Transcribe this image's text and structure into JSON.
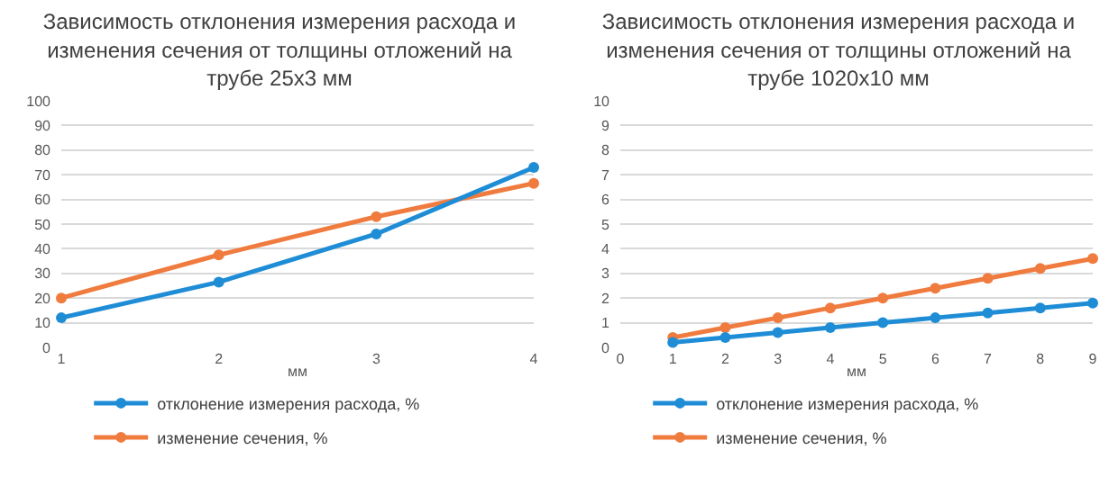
{
  "chart_data": [
    {
      "type": "line",
      "title": "Зависимость отклонения измерения расхода и изменения сечения от толщины отложений на трубе 25x3 мм",
      "xlabel": "мм",
      "x": [
        1,
        2,
        3,
        4
      ],
      "xlim": [
        1,
        4
      ],
      "xticks": [
        1,
        2,
        3,
        4
      ],
      "ylim": [
        0,
        100
      ],
      "yticks": [
        0,
        10,
        20,
        30,
        40,
        50,
        60,
        70,
        80,
        90,
        100
      ],
      "grid": "y",
      "legend": "bottom",
      "marker": "circle",
      "series": [
        {
          "name": "отклонение измерения расхода, %",
          "color": "#1f8dd6",
          "values": [
            12,
            26.5,
            46,
            73
          ]
        },
        {
          "name": "изменение сечения, %",
          "color": "#f07b3f",
          "values": [
            20,
            37.5,
            53,
            66.5
          ]
        }
      ]
    },
    {
      "type": "line",
      "title": "Зависимость отклонения измерения расхода и изменения сечения от толщины отложений на трубе 1020x10 мм",
      "xlabel": "мм",
      "x": [
        1,
        2,
        3,
        4,
        5,
        6,
        7,
        8,
        9
      ],
      "xlim": [
        0,
        9
      ],
      "xticks": [
        0,
        1,
        2,
        3,
        4,
        5,
        6,
        7,
        8,
        9
      ],
      "ylim": [
        0,
        10
      ],
      "yticks": [
        0,
        1,
        2,
        3,
        4,
        5,
        6,
        7,
        8,
        9,
        10
      ],
      "grid": "y",
      "legend": "bottom",
      "marker": "circle",
      "series": [
        {
          "name": "отклонение измерения расхода, %",
          "color": "#1f8dd6",
          "values": [
            0.2,
            0.4,
            0.6,
            0.8,
            1.0,
            1.2,
            1.4,
            1.6,
            1.8
          ]
        },
        {
          "name": "изменение сечения, %",
          "color": "#f07b3f",
          "values": [
            0.4,
            0.8,
            1.2,
            1.6,
            2.0,
            2.4,
            2.8,
            3.2,
            3.6
          ]
        }
      ]
    }
  ]
}
